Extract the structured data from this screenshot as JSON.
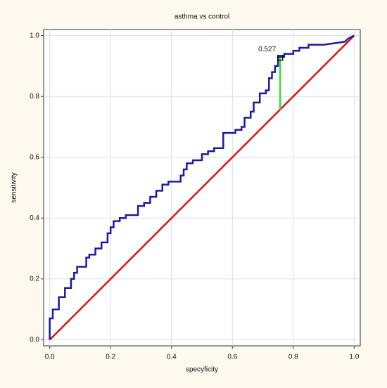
{
  "chart_data": {
    "type": "line",
    "title": "asthma vs control",
    "xlabel": "specyficity",
    "ylabel": "sensitivity",
    "xlim": [
      -0.02,
      1.02
    ],
    "ylim": [
      -0.02,
      1.02
    ],
    "xticks": [
      {
        "value": 0,
        "label": "0.0"
      },
      0.2,
      0.4,
      0.6,
      0.8,
      {
        "value": 1,
        "label": "1.0"
      }
    ],
    "yticks": [
      {
        "value": 0,
        "label": "0.0"
      },
      0.2,
      0.4,
      0.6,
      0.8,
      {
        "value": 1,
        "label": "1.0"
      }
    ],
    "grid": true,
    "series": [
      {
        "color": "#1a1aa6",
        "x": [
          0,
          0,
          0.01,
          0.01,
          0.03,
          0.03,
          0.05,
          0.05,
          0.07,
          0.07,
          0.08,
          0.08,
          0.09,
          0.09,
          0.12,
          0.12,
          0.13,
          0.13,
          0.15,
          0.15,
          0.17,
          0.17,
          0.19,
          0.19,
          0.2,
          0.2,
          0.21,
          0.21,
          0.23,
          0.23,
          0.25,
          0.25,
          0.29,
          0.29,
          0.31,
          0.31,
          0.33,
          0.33,
          0.35,
          0.35,
          0.37,
          0.37,
          0.39,
          0.39,
          0.43,
          0.43,
          0.44,
          0.44,
          0.45,
          0.45,
          0.47,
          0.47,
          0.5,
          0.5,
          0.52,
          0.52,
          0.54,
          0.54,
          0.57,
          0.57,
          0.61,
          0.61,
          0.63,
          0.63,
          0.64,
          0.64,
          0.66,
          0.66,
          0.67,
          0.67,
          0.69,
          0.69,
          0.71,
          0.71,
          0.72,
          0.72,
          0.73,
          0.73,
          0.74,
          0.74,
          0.75,
          0.75,
          0.77,
          0.77,
          0.8,
          0.8,
          0.82,
          0.82,
          0.85,
          0.85,
          0.9,
          0.97,
          0.98,
          1
        ],
        "y": [
          0,
          0.07,
          0.07,
          0.1,
          0.1,
          0.14,
          0.14,
          0.17,
          0.17,
          0.2,
          0.2,
          0.22,
          0.22,
          0.24,
          0.24,
          0.27,
          0.27,
          0.28,
          0.28,
          0.3,
          0.3,
          0.32,
          0.32,
          0.35,
          0.35,
          0.37,
          0.37,
          0.39,
          0.39,
          0.4,
          0.4,
          0.41,
          0.41,
          0.44,
          0.44,
          0.45,
          0.45,
          0.47,
          0.47,
          0.49,
          0.49,
          0.51,
          0.51,
          0.52,
          0.52,
          0.54,
          0.54,
          0.56,
          0.56,
          0.58,
          0.58,
          0.59,
          0.59,
          0.61,
          0.61,
          0.62,
          0.62,
          0.63,
          0.63,
          0.68,
          0.68,
          0.69,
          0.69,
          0.7,
          0.7,
          0.73,
          0.73,
          0.75,
          0.75,
          0.78,
          0.78,
          0.81,
          0.81,
          0.82,
          0.82,
          0.86,
          0.86,
          0.88,
          0.88,
          0.9,
          0.9,
          0.93,
          0.93,
          0.94,
          0.94,
          0.95,
          0.95,
          0.96,
          0.96,
          0.97,
          0.97,
          0.98,
          0.99,
          1
        ]
      },
      {
        "color": "#e01010",
        "x": [
          0,
          1
        ],
        "y": [
          0,
          1
        ]
      }
    ],
    "annotation": {
      "x": 0.757,
      "y": 0.927,
      "y0": 0.757,
      "label": "0.527",
      "color": "#33dd33"
    }
  }
}
